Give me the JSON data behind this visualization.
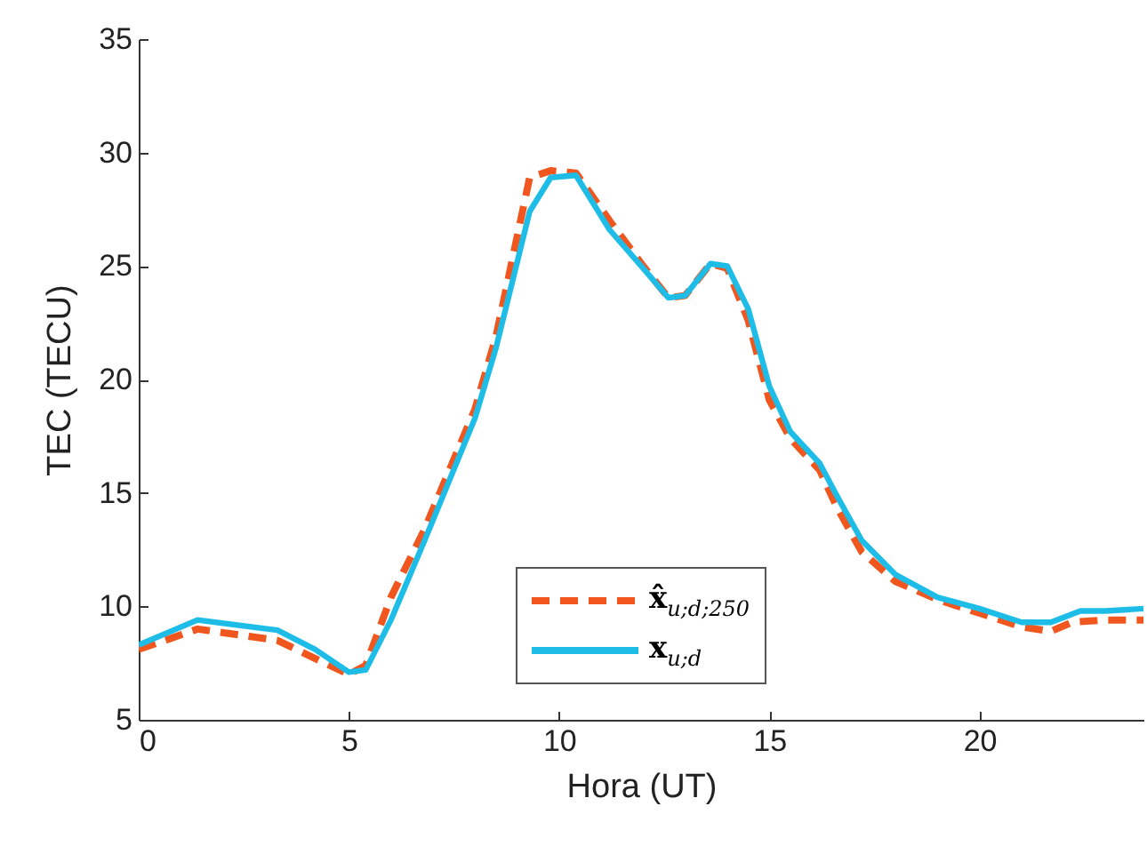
{
  "chart_data": {
    "type": "line",
    "xlabel": "Hora (UT)",
    "ylabel": "TEC (TECU)",
    "xlim": [
      0,
      23.9
    ],
    "xticks": [
      0,
      5,
      10,
      15,
      20
    ],
    "ylim": [
      5,
      35
    ],
    "yticks": [
      5,
      10,
      15,
      20,
      25,
      30,
      35
    ],
    "grid": false,
    "legend": "bottom",
    "marker": "none",
    "series": [
      {
        "name": "x̂$_{u;d;250}$",
        "color": "#f0561e",
        "line_style": "dashed",
        "x": [
          0,
          1.4,
          3.3,
          4.2,
          5,
          5.4,
          6,
          6.8,
          8,
          8.5,
          9.3,
          9.8,
          10.4,
          11.2,
          12,
          12.6,
          13,
          13.6,
          14,
          14.5,
          15,
          15.5,
          16.2,
          16.6,
          17.2,
          18,
          19,
          20,
          21,
          21.7,
          22.2,
          23,
          23.9
        ],
        "values": [
          8.1,
          9.0,
          8.5,
          7.7,
          7.0,
          7.4,
          10.4,
          13.4,
          18.7,
          21.9,
          28.9,
          29.2,
          29.1,
          27.0,
          25.0,
          23.6,
          23.7,
          25.1,
          24.9,
          22.6,
          19.1,
          17.4,
          16.0,
          14.4,
          12.4,
          11.1,
          10.3,
          9.7,
          9.1,
          8.9,
          9.3,
          9.4,
          9.4
        ]
      },
      {
        "name": "x$_{u;d}$",
        "color": "#1ebde8",
        "line_style": "solid",
        "x": [
          0,
          1.4,
          3.3,
          4.2,
          5,
          5.4,
          6,
          6.8,
          8,
          8.5,
          9.3,
          9.8,
          10.4,
          11.2,
          12,
          12.6,
          13,
          13.6,
          14,
          14.5,
          15,
          15.5,
          16.2,
          16.6,
          17.2,
          18,
          19,
          20,
          21,
          21.7,
          22.4,
          23,
          23.9
        ],
        "values": [
          8.3,
          9.4,
          8.95,
          8.1,
          7.1,
          7.2,
          9.4,
          12.9,
          18.3,
          21.4,
          27.4,
          28.9,
          29.0,
          26.6,
          24.9,
          23.6,
          23.7,
          25.1,
          25.0,
          23.1,
          19.7,
          17.7,
          16.3,
          14.9,
          12.9,
          11.4,
          10.4,
          9.9,
          9.3,
          9.3,
          9.8,
          9.8,
          9.9
        ]
      }
    ]
  }
}
